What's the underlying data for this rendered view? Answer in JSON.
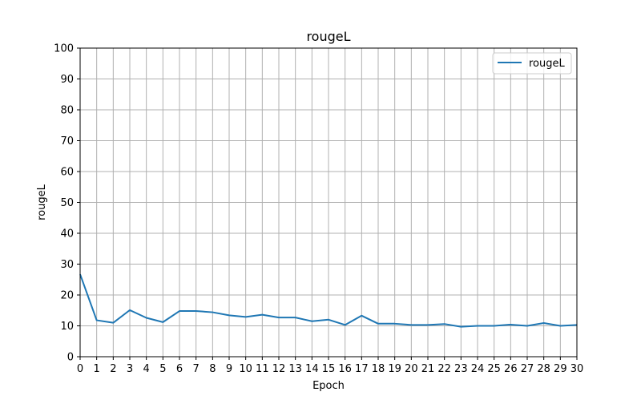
{
  "chart_data": {
    "type": "line",
    "title": "rougeL",
    "xlabel": "Epoch",
    "ylabel": "rougeL",
    "xlim": [
      0,
      30
    ],
    "ylim": [
      0,
      100
    ],
    "xticks": [
      0,
      1,
      2,
      3,
      4,
      5,
      6,
      7,
      8,
      9,
      10,
      11,
      12,
      13,
      14,
      15,
      16,
      17,
      18,
      19,
      20,
      21,
      22,
      23,
      24,
      25,
      26,
      27,
      28,
      29,
      30
    ],
    "yticks": [
      0,
      10,
      20,
      30,
      40,
      50,
      60,
      70,
      80,
      90,
      100
    ],
    "grid": true,
    "legend_position": "top-right",
    "series": [
      {
        "name": "rougeL",
        "color": "#1f77b4",
        "x": [
          0,
          1,
          2,
          3,
          4,
          5,
          6,
          7,
          8,
          9,
          10,
          11,
          12,
          13,
          14,
          15,
          16,
          17,
          18,
          19,
          20,
          21,
          22,
          23,
          24,
          25,
          26,
          27,
          28,
          29,
          30
        ],
        "y": [
          26.7,
          11.8,
          11.0,
          15.1,
          12.6,
          11.2,
          14.8,
          14.8,
          14.4,
          13.4,
          12.9,
          13.6,
          12.7,
          12.7,
          11.5,
          12.0,
          10.3,
          13.3,
          10.7,
          10.7,
          10.3,
          10.3,
          10.6,
          9.7,
          10.0,
          10.0,
          10.4,
          10.0,
          10.9,
          10.0,
          10.3
        ]
      }
    ]
  }
}
